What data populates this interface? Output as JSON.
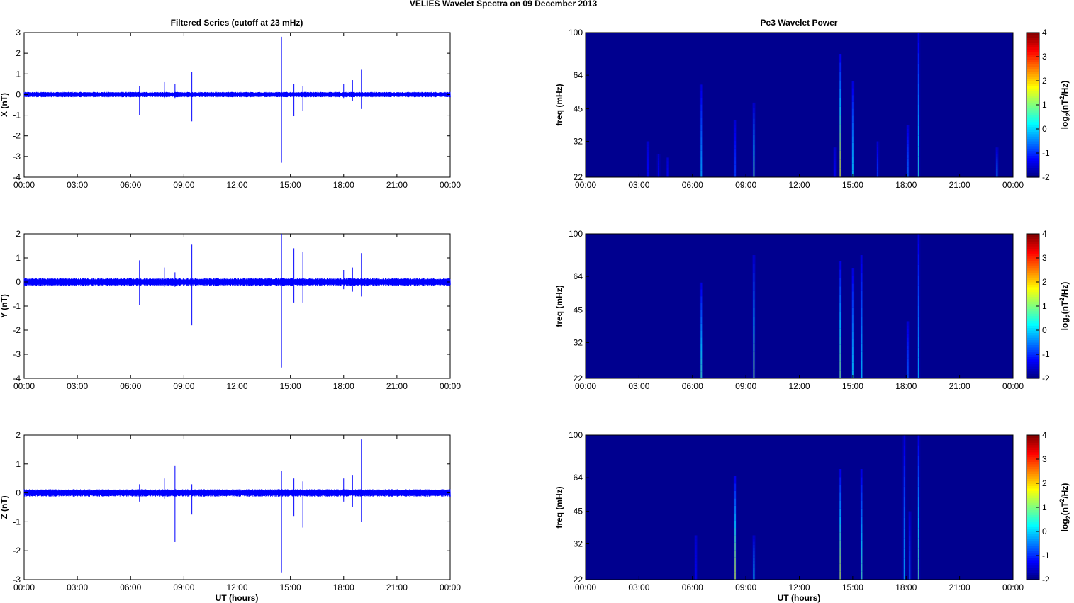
{
  "figure_title": "VELIES Wavelet Spectra on 09 December  2013",
  "left_title": "Filtered Series (cutoff at 23 mHz)",
  "right_title": "Pc3 Wavelet Power",
  "x_label": "UT (hours)",
  "freq_label": "freq (mHz)",
  "colorbar_label": "log2(nT2/Hz)",
  "colors": {
    "trace": "#0000ff",
    "background_power": "#00008f"
  },
  "chart_data": [
    {
      "type": "line",
      "component": "X",
      "ylabel": "X (nT)",
      "xlim": [
        "00:00",
        "24:00"
      ],
      "ylim": [
        -4,
        3
      ],
      "x_ticks": [
        "00:00",
        "03:00",
        "06:00",
        "09:00",
        "12:00",
        "15:00",
        "18:00",
        "21:00",
        "00:00"
      ],
      "y_ticks": [
        3,
        2,
        1,
        0,
        -1,
        -2,
        -3,
        -4
      ],
      "noise_amplitude": 0.08,
      "spikes": [
        {
          "t": 6.5,
          "max": 0.4,
          "min": -1.0
        },
        {
          "t": 7.9,
          "max": 0.6,
          "min": -0.2
        },
        {
          "t": 8.5,
          "max": 0.5,
          "min": -0.2
        },
        {
          "t": 9.45,
          "max": 1.1,
          "min": -1.3
        },
        {
          "t": 14.5,
          "max": 2.8,
          "min": -3.3
        },
        {
          "t": 15.2,
          "max": 0.5,
          "min": -1.05
        },
        {
          "t": 15.7,
          "max": 0.4,
          "min": -0.8
        },
        {
          "t": 18.0,
          "max": 0.5,
          "min": -0.2
        },
        {
          "t": 18.5,
          "max": 0.7,
          "min": -0.3
        },
        {
          "t": 19.0,
          "max": 1.2,
          "min": -0.7
        }
      ]
    },
    {
      "type": "heatmap",
      "component": "X",
      "ylabel": "freq (mHz)",
      "xlim": [
        "00:00",
        "24:00"
      ],
      "y_ticks": [
        100,
        64,
        45,
        32,
        22
      ],
      "colorbar": {
        "min": -2,
        "max": 4,
        "ticks": [
          4,
          3,
          2,
          1,
          0,
          -1,
          -2
        ]
      },
      "bursts": [
        {
          "t": 3.5,
          "fmax": 32,
          "peak": -1.2
        },
        {
          "t": 4.1,
          "fmax": 28,
          "peak": -1.3
        },
        {
          "t": 4.6,
          "fmax": 27,
          "peak": -1.3
        },
        {
          "t": 6.5,
          "fmax": 58,
          "peak": 0.0
        },
        {
          "t": 8.4,
          "fmax": 40,
          "peak": -0.8
        },
        {
          "t": 9.45,
          "fmax": 48,
          "peak": 0.8
        },
        {
          "t": 14.0,
          "fmax": 30,
          "peak": -1.3
        },
        {
          "t": 14.3,
          "fmax": 80,
          "peak": 1.6
        },
        {
          "t": 15.0,
          "fmax": 60,
          "peak": 0.3
        },
        {
          "t": 16.4,
          "fmax": 32,
          "peak": -0.8
        },
        {
          "t": 18.1,
          "fmax": 38,
          "peak": -0.5
        },
        {
          "t": 18.7,
          "fmax": 100,
          "peak": 0.5
        },
        {
          "t": 23.1,
          "fmax": 30,
          "peak": -0.3
        }
      ]
    },
    {
      "type": "line",
      "component": "Y",
      "ylabel": "Y (nT)",
      "xlim": [
        "00:00",
        "24:00"
      ],
      "ylim": [
        -4,
        2
      ],
      "x_ticks": [
        "00:00",
        "03:00",
        "06:00",
        "09:00",
        "12:00",
        "15:00",
        "18:00",
        "21:00",
        "00:00"
      ],
      "y_ticks": [
        2,
        1,
        0,
        -1,
        -2,
        -3,
        -4
      ],
      "noise_amplitude": 0.1,
      "spikes": [
        {
          "t": 6.5,
          "max": 0.9,
          "min": -0.95
        },
        {
          "t": 7.9,
          "max": 0.6,
          "min": -0.2
        },
        {
          "t": 8.5,
          "max": 0.4,
          "min": -0.2
        },
        {
          "t": 9.45,
          "max": 1.55,
          "min": -1.8
        },
        {
          "t": 14.5,
          "max": 2.0,
          "min": -3.55
        },
        {
          "t": 15.2,
          "max": 1.4,
          "min": -0.85
        },
        {
          "t": 15.7,
          "max": 1.25,
          "min": -0.85
        },
        {
          "t": 18.0,
          "max": 0.5,
          "min": -0.3
        },
        {
          "t": 18.5,
          "max": 0.6,
          "min": -0.4
        },
        {
          "t": 19.0,
          "max": 1.2,
          "min": -0.6
        }
      ]
    },
    {
      "type": "heatmap",
      "component": "Y",
      "ylabel": "freq (mHz)",
      "xlim": [
        "00:00",
        "24:00"
      ],
      "y_ticks": [
        100,
        64,
        45,
        32,
        22
      ],
      "colorbar": {
        "min": -2,
        "max": 4,
        "ticks": [
          4,
          3,
          2,
          1,
          0,
          -1,
          -2
        ]
      },
      "bursts": [
        {
          "t": 6.5,
          "fmax": 60,
          "peak": 0.6
        },
        {
          "t": 9.45,
          "fmax": 80,
          "peak": 1.0
        },
        {
          "t": 14.3,
          "fmax": 75,
          "peak": 1.0
        },
        {
          "t": 15.0,
          "fmax": 70,
          "peak": 0.3
        },
        {
          "t": 15.5,
          "fmax": 80,
          "peak": 0.2
        },
        {
          "t": 18.1,
          "fmax": 40,
          "peak": -0.6
        },
        {
          "t": 18.7,
          "fmax": 100,
          "peak": 0.1
        }
      ]
    },
    {
      "type": "line",
      "component": "Z",
      "ylabel": "Z (nT)",
      "xlim": [
        "00:00",
        "24:00"
      ],
      "ylim": [
        -3,
        2
      ],
      "x_ticks": [
        "00:00",
        "03:00",
        "06:00",
        "09:00",
        "12:00",
        "15:00",
        "18:00",
        "21:00",
        "00:00"
      ],
      "y_ticks": [
        2,
        1,
        0,
        -1,
        -2,
        -3
      ],
      "noise_amplitude": 0.08,
      "spikes": [
        {
          "t": 6.5,
          "max": 0.3,
          "min": -0.3
        },
        {
          "t": 7.9,
          "max": 0.5,
          "min": -0.2
        },
        {
          "t": 8.5,
          "max": 0.95,
          "min": -1.7
        },
        {
          "t": 9.45,
          "max": 0.3,
          "min": -0.75
        },
        {
          "t": 14.5,
          "max": 0.75,
          "min": -2.75
        },
        {
          "t": 15.2,
          "max": 0.5,
          "min": -0.8
        },
        {
          "t": 15.7,
          "max": 0.4,
          "min": -1.2
        },
        {
          "t": 18.0,
          "max": 0.5,
          "min": -0.3
        },
        {
          "t": 18.5,
          "max": 0.6,
          "min": -0.5
        },
        {
          "t": 19.0,
          "max": 1.85,
          "min": -1.0
        }
      ]
    },
    {
      "type": "heatmap",
      "component": "Z",
      "ylabel": "freq (mHz)",
      "xlim": [
        "00:00",
        "24:00"
      ],
      "y_ticks": [
        100,
        64,
        45,
        32,
        22
      ],
      "colorbar": {
        "min": -2,
        "max": 4,
        "ticks": [
          4,
          3,
          2,
          1,
          0,
          -1,
          -2
        ]
      },
      "bursts": [
        {
          "t": 6.2,
          "fmax": 35,
          "peak": -1.3
        },
        {
          "t": 8.4,
          "fmax": 65,
          "peak": 1.4
        },
        {
          "t": 9.45,
          "fmax": 35,
          "peak": 0.3
        },
        {
          "t": 14.3,
          "fmax": 70,
          "peak": 1.4
        },
        {
          "t": 15.5,
          "fmax": 70,
          "peak": 0.7
        },
        {
          "t": 17.9,
          "fmax": 100,
          "peak": 0.0
        },
        {
          "t": 18.2,
          "fmax": 45,
          "peak": -0.5
        },
        {
          "t": 18.7,
          "fmax": 100,
          "peak": 0.8
        }
      ]
    }
  ]
}
